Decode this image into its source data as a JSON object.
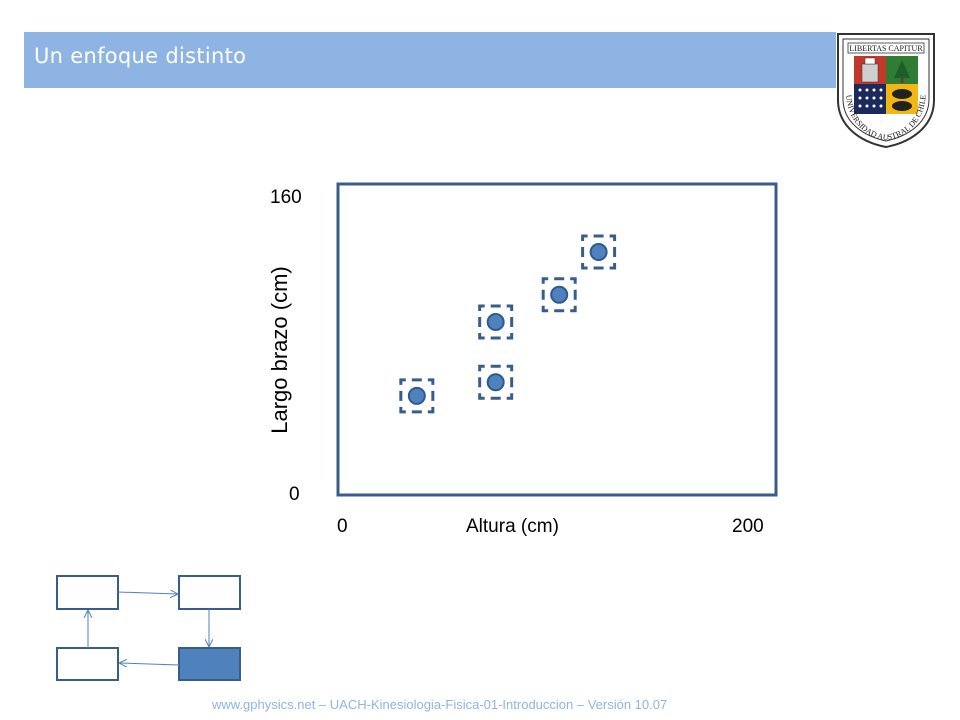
{
  "slide": {
    "title": "Un enfoque distinto",
    "footer": "www.gphysics.net – UACH-Kinesiologia-Fisica-01-Introduccion – Versión 10.07"
  },
  "logo": {
    "text_top": "LIBERTAS CAPITUR",
    "text_ring": "UNIVERSIDAD AUSTRAL DE CHILE"
  },
  "colors": {
    "title_bar": "#8eb4e3",
    "point_fill": "#4f81bd",
    "point_stroke": "#2c5a91",
    "frame": "#385d8a",
    "box_active": "#4f81bd"
  },
  "chart_data": {
    "type": "scatter",
    "xlabel": "Altura (cm)",
    "ylabel": "Largo brazo (cm)",
    "xlim": [
      0,
      200
    ],
    "ylim": [
      0,
      160
    ],
    "x_tick_labels": [
      "0",
      "200"
    ],
    "y_tick_labels": [
      "0",
      "160"
    ],
    "grid": false,
    "legend": "none",
    "points": [
      {
        "x": 36,
        "y": 51
      },
      {
        "x": 72,
        "y": 89
      },
      {
        "x": 72,
        "y": 58
      },
      {
        "x": 101,
        "y": 103
      },
      {
        "x": 119,
        "y": 125
      }
    ],
    "marker_frame": "dashed-square"
  },
  "flow_diagram": {
    "boxes": 4,
    "active_box": "bottom-right",
    "direction": "clockwise"
  }
}
